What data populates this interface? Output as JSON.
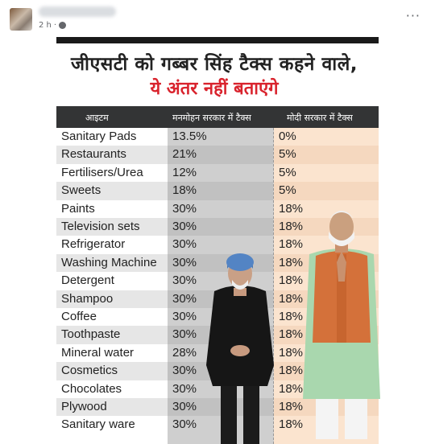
{
  "post": {
    "timestamp": "2 h",
    "more_label": "···"
  },
  "graphic": {
    "headline_line1": "जीएसटी को गब्बर सिंह टैक्स कहने वाले,",
    "headline_line2": "ये अंतर नहीं बताएंगे",
    "headline_line2_color": "#d9232d",
    "header_bg": "#333435",
    "table": {
      "headers": [
        "आइटम",
        "मनमोहन सरकार में टैक्स",
        "मोदी सरकार में टैक्स"
      ],
      "rows": [
        {
          "item": "Sanitary Pads",
          "manmohan": "13.5%",
          "modi": "0%"
        },
        {
          "item": "Restaurants",
          "manmohan": "21%",
          "modi": "5%"
        },
        {
          "item": "Fertilisers/Urea",
          "manmohan": "12%",
          "modi": "5%"
        },
        {
          "item": "Sweets",
          "manmohan": "18%",
          "modi": "5%"
        },
        {
          "item": "Paints",
          "manmohan": "30%",
          "modi": "18%"
        },
        {
          "item": "Television sets",
          "manmohan": "30%",
          "modi": "18%"
        },
        {
          "item": "Refrigerator",
          "manmohan": "30%",
          "modi": "18%"
        },
        {
          "item": "Washing Machine",
          "manmohan": "30%",
          "modi": "18%"
        },
        {
          "item": "Detergent",
          "manmohan": "30%",
          "modi": "18%"
        },
        {
          "item": "Shampoo",
          "manmohan": "30%",
          "modi": "18%"
        },
        {
          "item": "Coffee",
          "manmohan": "30%",
          "modi": "18%"
        },
        {
          "item": "Toothpaste",
          "manmohan": "30%",
          "modi": "18%"
        },
        {
          "item": "Mineral water",
          "manmohan": "28%",
          "modi": "18%"
        },
        {
          "item": "Cosmetics",
          "manmohan": "30%",
          "modi": "18%"
        },
        {
          "item": "Chocolates",
          "manmohan": "30%",
          "modi": "18%"
        },
        {
          "item": "Plywood",
          "manmohan": "30%",
          "modi": "18%"
        },
        {
          "item": "Sanitary ware",
          "manmohan": "30%",
          "modi": "18%"
        }
      ]
    }
  }
}
